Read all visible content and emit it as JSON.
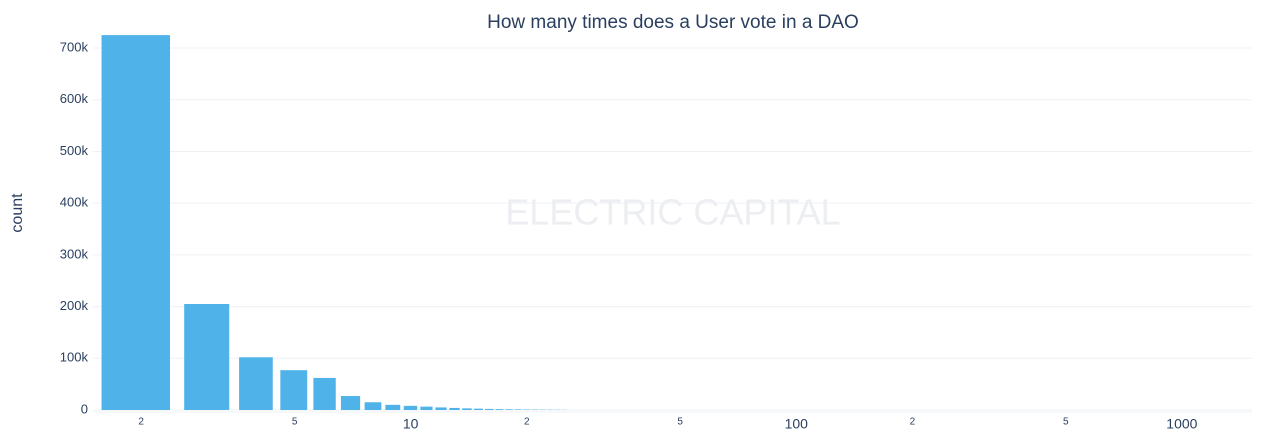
{
  "chart_data": {
    "type": "histogram",
    "title": "How many times does a User vote in a DAO",
    "y_label": "count",
    "watermark": "ELECTRIC CAPITAL",
    "bins": [
      1.5,
      2.5,
      3.5,
      4.5,
      5.5,
      6.5,
      7.5,
      8.5,
      9.5,
      10.5,
      11.5,
      12.5,
      13.5,
      14.5,
      15.5,
      16.5,
      17.5,
      18.5,
      19.5,
      20.5,
      21.5,
      22.5,
      23.5,
      24.5,
      25.5
    ],
    "values": [
      725000,
      205000,
      102000,
      77000,
      62000,
      27000,
      15000,
      10000,
      8000,
      6500,
      5000,
      4000,
      3200,
      2600,
      2100,
      1700,
      1400,
      1200,
      1000,
      850,
      700,
      600,
      500,
      420
    ],
    "color": "#4fb3ea",
    "x_log": true,
    "bargap": 0.2,
    "xlim": [
      1.5,
      1520
    ],
    "xticks": [
      2,
      5,
      10,
      {
        "value": 20,
        "label": "2"
      },
      {
        "value": 50,
        "label": "5"
      },
      100,
      {
        "value": 200,
        "label": "2"
      },
      {
        "value": 500,
        "label": "5"
      },
      1000
    ],
    "ylim": [
      0,
      760000
    ],
    "yticks": [
      0,
      {
        "value": 100000,
        "label": "100k"
      },
      {
        "value": 200000,
        "label": "200k"
      },
      {
        "value": 300000,
        "label": "300k"
      },
      {
        "value": 400000,
        "label": "400k"
      },
      {
        "value": 500000,
        "label": "500k"
      },
      {
        "value": 600000,
        "label": "600k"
      },
      {
        "value": 700000,
        "label": "700k"
      }
    ],
    "grid": true
  }
}
